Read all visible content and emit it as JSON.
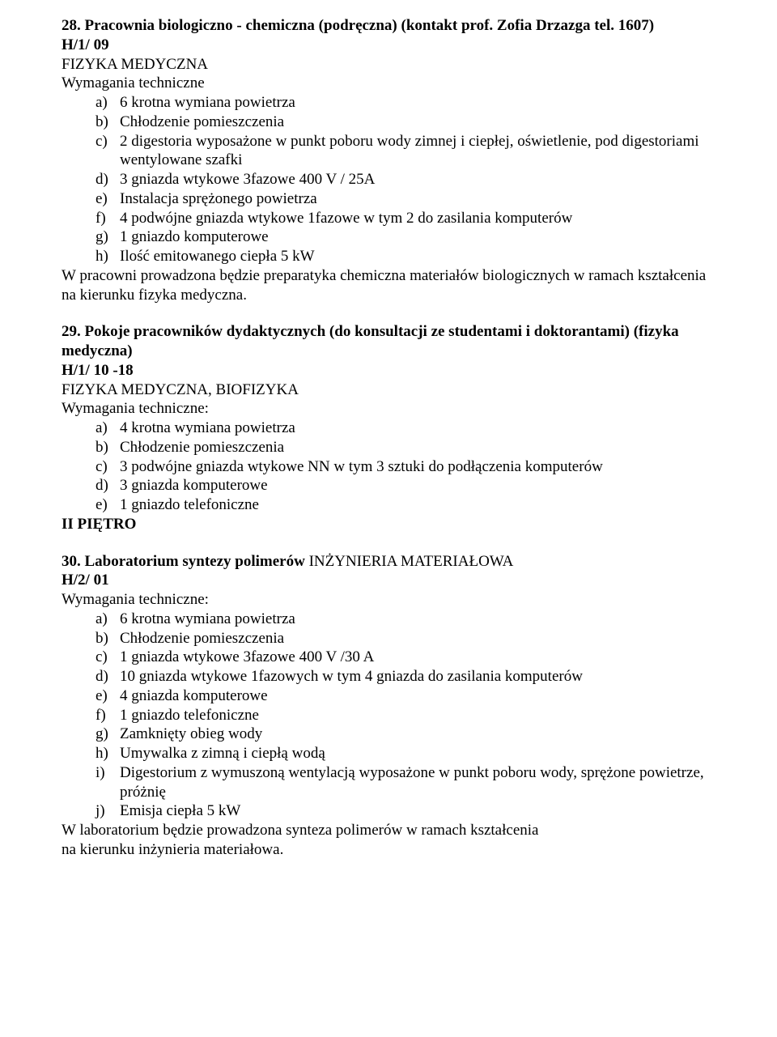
{
  "sec28": {
    "title": "28. Pracownia biologiczno - chemiczna (podręczna) (kontakt prof. Zofia Drzazga tel. 1607)",
    "code": "H/1/ 09",
    "subject": "FIZYKA MEDYCZNA",
    "req_label": "Wymagania techniczne",
    "items": [
      {
        "m": "a)",
        "t": "6 krotna wymiana powietrza"
      },
      {
        "m": "b)",
        "t": "Chłodzenie pomieszczenia"
      },
      {
        "m": "c)",
        "t": "2 digestoria wyposażone w punkt poboru wody zimnej i ciepłej, oświetlenie, pod digestoriami wentylowane szafki"
      },
      {
        "m": "d)",
        "t": "3 gniazda wtykowe 3fazowe 400 V / 25A"
      },
      {
        "m": "e)",
        "t": "Instalacja sprężonego powietrza"
      },
      {
        "m": "f)",
        "t": "4 podwójne gniazda wtykowe 1fazowe w tym 2 do zasilania komputerów"
      },
      {
        "m": "g)",
        "t": "1 gniazdo komputerowe"
      },
      {
        "m": "h)",
        "t": "Ilość emitowanego ciepła 5 kW"
      }
    ],
    "tail": "W pracowni prowadzona będzie preparatyka chemiczna materiałów biologicznych w ramach kształcenia na kierunku fizyka medyczna."
  },
  "sec29": {
    "title": "29. Pokoje pracowników dydaktycznych (do konsultacji ze studentami i doktorantami) (fizyka medyczna)",
    "code": "H/1/ 10 -18",
    "subject": "FIZYKA MEDYCZNA, BIOFIZYKA",
    "req_label": "Wymagania techniczne:",
    "items": [
      {
        "m": "a)",
        "t": "4 krotna wymiana powietrza"
      },
      {
        "m": "b)",
        "t": "Chłodzenie pomieszczenia"
      },
      {
        "m": "c)",
        "t": "3 podwójne gniazda wtykowe NN w tym 3 sztuki do podłączenia komputerów"
      },
      {
        "m": "d)",
        "t": "3 gniazda komputerowe"
      },
      {
        "m": "e)",
        "t": "1 gniazdo telefoniczne"
      }
    ],
    "floor": "II PIĘTRO"
  },
  "sec30": {
    "title_bold": "30. Laboratorium syntezy polimerów ",
    "title_rest": "INŻYNIERIA MATERIAŁOWA",
    "code": "H/2/ 01",
    "req_label": "Wymagania techniczne:",
    "items": [
      {
        "m": "a)",
        "t": "6 krotna wymiana powietrza"
      },
      {
        "m": "b)",
        "t": "Chłodzenie pomieszczenia"
      },
      {
        "m": "c)",
        "t": "1 gniazda wtykowe 3fazowe 400 V /30 A"
      },
      {
        "m": "d)",
        "t": "10 gniazda wtykowe 1fazowych  w tym 4 gniazda do zasilania komputerów"
      },
      {
        "m": "e)",
        "t": "4 gniazda komputerowe"
      },
      {
        "m": "f)",
        "t": "1 gniazdo telefoniczne"
      },
      {
        "m": "g)",
        "t": "Zamknięty obieg wody"
      },
      {
        "m": "h)",
        "t": "Umywalka z zimną i ciepłą wodą"
      },
      {
        "m": "i)",
        "t": "Digestorium z wymuszoną wentylacją wyposażone w punkt poboru wody, sprężone powietrze, próżnię"
      },
      {
        "m": "j)",
        "t": "Emisja ciepła 5 kW"
      }
    ],
    "tail1": "W laboratorium będzie prowadzona synteza polimerów w ramach kształcenia",
    "tail2": "na kierunku inżynieria materiałowa."
  }
}
